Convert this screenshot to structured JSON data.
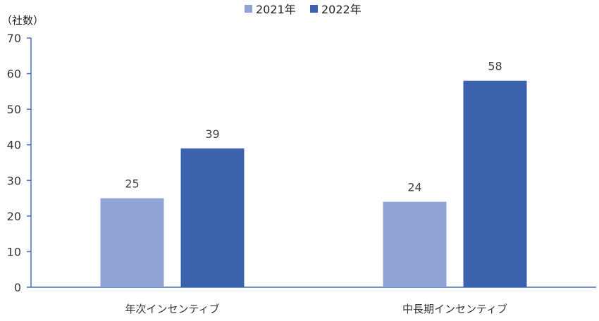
{
  "chart_data": {
    "type": "bar",
    "unit_label": "（社数）",
    "categories": [
      "年次インセンティブ",
      "中長期インセンティブ"
    ],
    "series": [
      {
        "name": "2021年",
        "color": "#8FA3D5",
        "values": [
          25,
          24
        ]
      },
      {
        "name": "2022年",
        "color": "#3B62AD",
        "values": [
          39,
          58
        ]
      }
    ],
    "ylim": [
      0,
      70
    ],
    "yticks": [
      0,
      10,
      20,
      30,
      40,
      50,
      60,
      70
    ],
    "legend_position": "top-center",
    "grid": false,
    "axis_color": "#4472C4"
  }
}
